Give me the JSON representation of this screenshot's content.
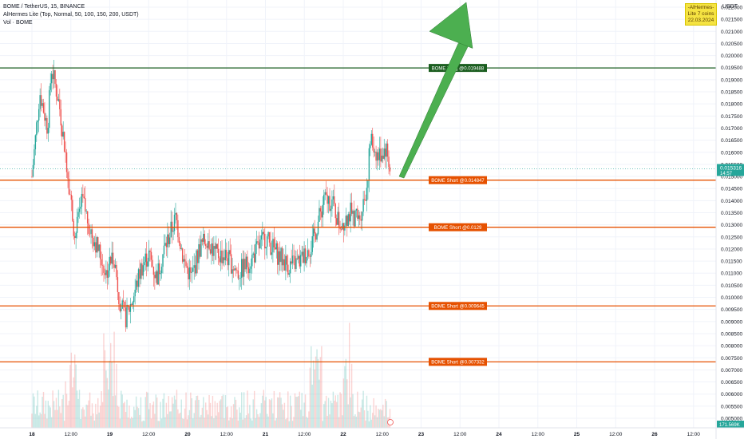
{
  "header": {
    "symbol_line": "BOME / TetherUS, 15, BINANCE",
    "indicator_line": "AlHermes Lite (Top, Normal, 50, 100, 150, 200, USDT)",
    "volume_line": "Vol · BOME"
  },
  "badge": {
    "line1": "-AlHermes-",
    "line2": "Lite 7 coins",
    "line3": "22.03.2024"
  },
  "price_axis": {
    "unit": "USDT",
    "ticks": [
      "0.022000",
      "0.021500",
      "0.021000",
      "0.020500",
      "0.020000",
      "0.019500",
      "0.019000",
      "0.018500",
      "0.018000",
      "0.017500",
      "0.017000",
      "0.016500",
      "0.016000",
      "0.015500",
      "0.015000",
      "0.014500",
      "0.014000",
      "0.013500",
      "0.013000",
      "0.012500",
      "0.012000",
      "0.011500",
      "0.011000",
      "0.010500",
      "0.010000",
      "0.009500",
      "0.009000",
      "0.008500",
      "0.008000",
      "0.007500",
      "0.007000",
      "0.006500",
      "0.006000",
      "0.005500",
      "0.005000"
    ],
    "current_price": "0.015316",
    "countdown": "14:57",
    "volume_label": "171.569K"
  },
  "time_axis": {
    "labels": [
      "18",
      "12:00",
      "19",
      "12:00",
      "20",
      "12:00",
      "21",
      "12:00",
      "22",
      "12:00",
      "23",
      "12:00",
      "24",
      "12:00",
      "25",
      "12:00",
      "26",
      "12:00"
    ]
  },
  "levels": [
    {
      "kind": "long",
      "label": "BOME Long @0.019488",
      "price": 0.019488,
      "color": "#1b5e20"
    },
    {
      "kind": "short",
      "label": "BOME Short @0.014847",
      "price": 0.014847,
      "color": "#e65100"
    },
    {
      "kind": "short",
      "label": "BOME Short @0.0129",
      "price": 0.0129,
      "color": "#e65100"
    },
    {
      "kind": "short",
      "label": "BOME Short @0.009645",
      "price": 0.009645,
      "color": "#e65100"
    },
    {
      "kind": "short",
      "label": "BOME Short @0.007332",
      "price": 0.007332,
      "color": "#e65100"
    }
  ],
  "colors": {
    "up": "#26a69a",
    "down": "#ef5350",
    "current": "#26a69a",
    "arrow": "#4caf50",
    "grid": "#f0f3fa"
  },
  "chart_data": {
    "type": "candlestick",
    "title": "BOME / TetherUS, 15, BINANCE",
    "ylim": [
      0.005,
      0.0222
    ],
    "x_days": [
      "18",
      "19",
      "20",
      "21",
      "22",
      "23",
      "24",
      "25",
      "26"
    ],
    "price_path": [
      [
        18.0,
        0.015
      ],
      [
        18.1,
        0.0185
      ],
      [
        18.2,
        0.017
      ],
      [
        18.25,
        0.0195
      ],
      [
        18.35,
        0.018
      ],
      [
        18.45,
        0.0155
      ],
      [
        18.55,
        0.0125
      ],
      [
        18.65,
        0.014
      ],
      [
        18.75,
        0.0128
      ],
      [
        18.85,
        0.012
      ],
      [
        18.95,
        0.011
      ],
      [
        19.05,
        0.0118
      ],
      [
        19.12,
        0.01
      ],
      [
        19.2,
        0.0091
      ],
      [
        19.3,
        0.01
      ],
      [
        19.4,
        0.0112
      ],
      [
        19.5,
        0.0118
      ],
      [
        19.6,
        0.0108
      ],
      [
        19.7,
        0.012
      ],
      [
        19.85,
        0.0133
      ],
      [
        19.95,
        0.0115
      ],
      [
        20.05,
        0.0108
      ],
      [
        20.15,
        0.012
      ],
      [
        20.25,
        0.0125
      ],
      [
        20.35,
        0.0118
      ],
      [
        20.5,
        0.0117
      ],
      [
        20.65,
        0.011
      ],
      [
        20.8,
        0.0115
      ],
      [
        21.0,
        0.0125
      ],
      [
        21.15,
        0.0118
      ],
      [
        21.3,
        0.0113
      ],
      [
        21.45,
        0.0115
      ],
      [
        21.6,
        0.0122
      ],
      [
        21.75,
        0.014
      ],
      [
        21.85,
        0.014
      ],
      [
        21.95,
        0.013
      ],
      [
        22.1,
        0.0135
      ],
      [
        22.2,
        0.0132
      ],
      [
        22.3,
        0.0145
      ],
      [
        22.35,
        0.0165
      ],
      [
        22.45,
        0.0158
      ],
      [
        22.55,
        0.0162
      ],
      [
        22.6,
        0.01532
      ]
    ],
    "volume_profile": "spikes near 18 12:00, 19 00:00, 21 12:00, 22 00:00",
    "annotations": [
      {
        "type": "arrow",
        "from_price": 0.015,
        "to_price": 0.0225,
        "from_x": 22.7,
        "to_x": 23.5
      }
    ]
  }
}
